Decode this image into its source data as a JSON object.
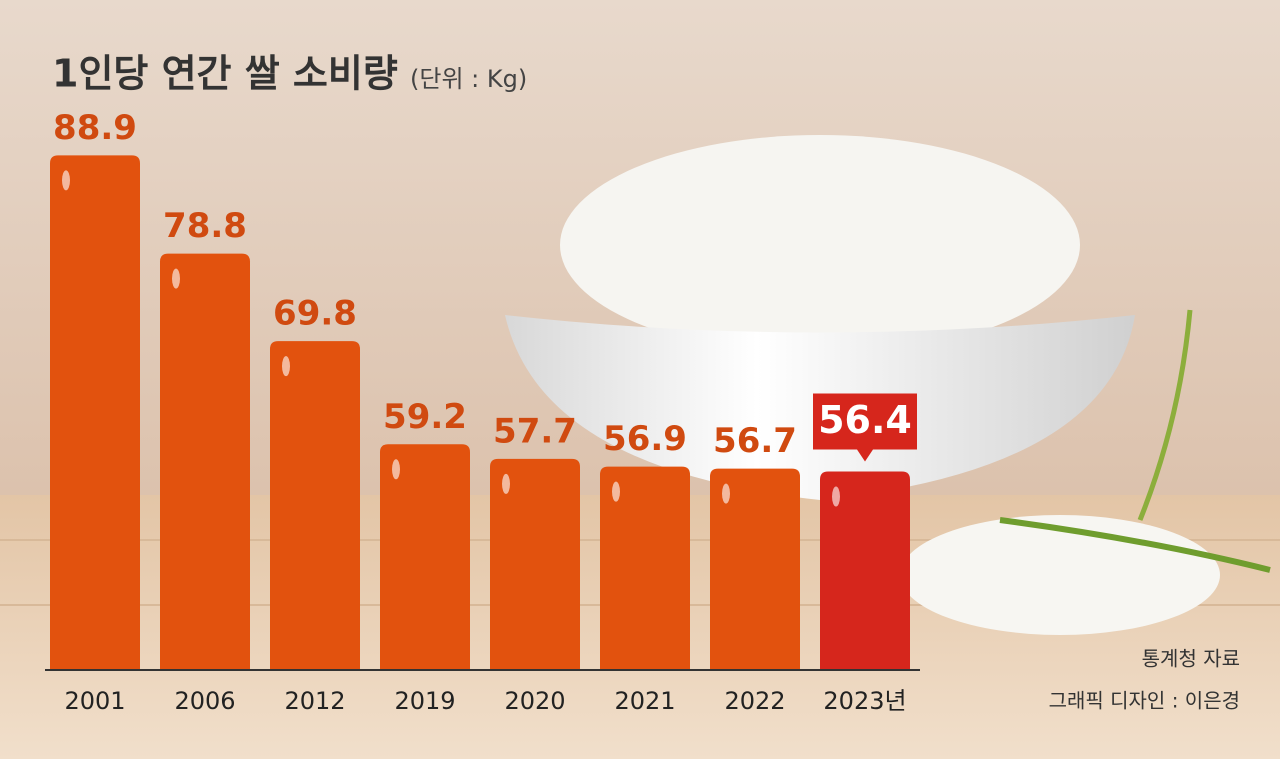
{
  "chart_data": {
    "type": "bar",
    "title": "1인당 연간 쌀 소비량",
    "subtitle": "(단위 : Kg)",
    "categories": [
      "2001",
      "2006",
      "2012",
      "2019",
      "2020",
      "2021",
      "2022",
      "2023년"
    ],
    "values": [
      88.9,
      78.8,
      69.8,
      59.2,
      57.7,
      56.9,
      56.7,
      56.4
    ],
    "colors": [
      "#e2520e",
      "#e2520e",
      "#e2520e",
      "#e2520e",
      "#e2520e",
      "#e2520e",
      "#e2520e",
      "#d6261c"
    ],
    "ylim": [
      36,
      95
    ],
    "source": "통계청 자료",
    "credit": "그래픽 디자인 : 이은경"
  }
}
